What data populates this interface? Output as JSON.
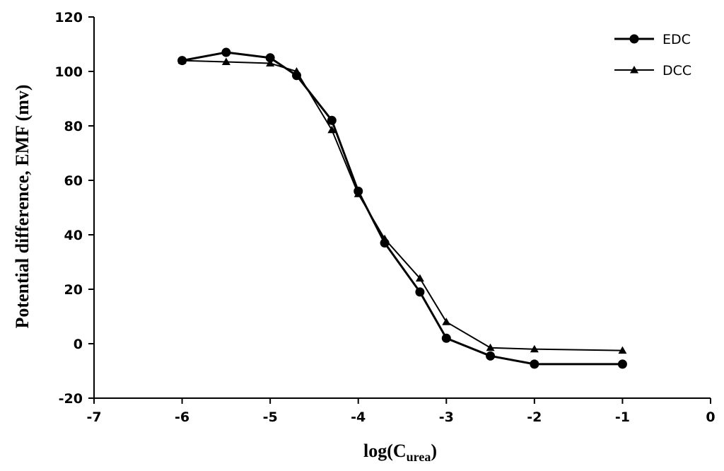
{
  "chart_data": {
    "type": "line",
    "xlabel": "log(C",
    "xlabel_subscript": "urea",
    "xlabel_close": ")",
    "ylabel": "Potential difference, EMF (mv)",
    "xlim": [
      -7,
      0
    ],
    "ylim": [
      -20,
      120
    ],
    "x_ticks": [
      -7,
      -6,
      -5,
      -4,
      -3,
      -2,
      -1,
      0
    ],
    "y_ticks": [
      -20,
      0,
      20,
      40,
      60,
      80,
      100,
      120
    ],
    "grid": false,
    "legend_position": "top-right",
    "series": [
      {
        "name": "EDC",
        "marker": "circle",
        "color": "#000000",
        "x": [
          -6,
          -5.5,
          -5,
          -4.7,
          -4.3,
          -4,
          -3.7,
          -3.3,
          -3,
          -2.5,
          -2,
          -1
        ],
        "y": [
          104,
          107,
          105,
          98.5,
          82,
          56,
          37,
          19,
          2,
          -4.5,
          -7.5,
          -7.5
        ]
      },
      {
        "name": "DCC",
        "marker": "triangle",
        "color": "#000000",
        "x": [
          -6,
          -5.5,
          -5,
          -4.7,
          -4.3,
          -4,
          -3.7,
          -3.3,
          -3,
          -2.5,
          -2,
          -1
        ],
        "y": [
          104,
          103.5,
          103,
          100,
          78.5,
          55,
          38.5,
          24,
          8,
          -1.5,
          -2,
          -2.5
        ]
      }
    ]
  }
}
